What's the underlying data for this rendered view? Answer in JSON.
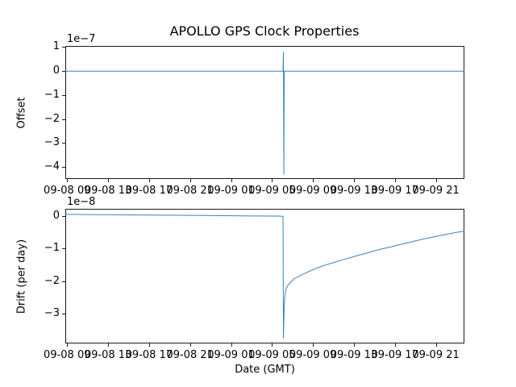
{
  "figure": {
    "background": "#ffffff",
    "line_color": "#1f77b4",
    "spine_color": "#1a1a1a"
  },
  "chart_data": [
    {
      "type": "line",
      "title": "APOLLO GPS Clock Properties",
      "ylabel": "Offset",
      "xlabel": "",
      "offset_text": "1e−7",
      "y_unit": "1e-7",
      "grid": false,
      "legend": null,
      "xlim": [
        8.82,
        47.79
      ],
      "ylim": [
        -4.5,
        1.05
      ],
      "yticks": {
        "values": [
          1,
          0,
          -1,
          -2,
          -3,
          -4
        ],
        "labels": [
          "1",
          "0",
          "−1",
          "−2",
          "−3",
          "−4"
        ]
      },
      "xticks": {
        "values": [
          9,
          13,
          17,
          21,
          25,
          29,
          33,
          37,
          41,
          45
        ],
        "labels": [
          "09-08 09",
          "09-08 13",
          "09-08 17",
          "09-08 21",
          "09-09 01",
          "09-09 05",
          "09-09 09",
          "09-09 13",
          "09-09 17",
          "09-09 21"
        ]
      },
      "series": [
        {
          "name": "offset",
          "x": [
            8.82,
            30.08,
            30.12,
            30.16,
            30.2,
            47.79
          ],
          "y": [
            0,
            0,
            0.8,
            -4.3,
            0,
            0
          ]
        }
      ]
    },
    {
      "type": "line",
      "title": "",
      "ylabel": "Drift (per day)",
      "xlabel": "Date (GMT)",
      "offset_text": "1e−8",
      "y_unit": "1e-8",
      "grid": false,
      "legend": null,
      "xlim": [
        8.82,
        47.79
      ],
      "ylim": [
        -3.92,
        0.23
      ],
      "yticks": {
        "values": [
          0,
          -1,
          -2,
          -3
        ],
        "labels": [
          "0",
          "−1",
          "−2",
          "−3"
        ]
      },
      "xticks": {
        "values": [
          9,
          13,
          17,
          21,
          25,
          29,
          33,
          37,
          41,
          45
        ],
        "labels": [
          "09-08 09",
          "09-08 13",
          "09-08 17",
          "09-08 21",
          "09-09 01",
          "09-09 05",
          "09-09 09",
          "09-09 13",
          "09-09 17",
          "09-09 21"
        ]
      },
      "series": [
        {
          "name": "drift",
          "x": [
            8.82,
            12,
            16,
            20,
            24,
            27,
            29.5,
            30.08,
            30.12,
            30.16,
            30.22,
            30.35,
            30.6,
            31.18,
            32.0,
            32.76,
            33.5,
            34.33,
            35.1,
            35.91,
            36.7,
            37.48,
            38.3,
            39.06,
            39.8,
            40.63,
            41.4,
            42.2,
            43.0,
            43.78,
            44.6,
            45.35,
            46.1,
            46.93,
            47.79
          ],
          "y": [
            0.06,
            0.05,
            0.04,
            0.03,
            0.02,
            0.01,
            0.005,
            0.0,
            -3.75,
            -3.2,
            -2.6,
            -2.25,
            -2.1,
            -1.92,
            -1.79,
            -1.68,
            -1.58,
            -1.49,
            -1.42,
            -1.34,
            -1.27,
            -1.2,
            -1.13,
            -1.06,
            -1.0,
            -0.94,
            -0.88,
            -0.82,
            -0.76,
            -0.7,
            -0.65,
            -0.6,
            -0.55,
            -0.5,
            -0.46
          ]
        }
      ]
    }
  ]
}
